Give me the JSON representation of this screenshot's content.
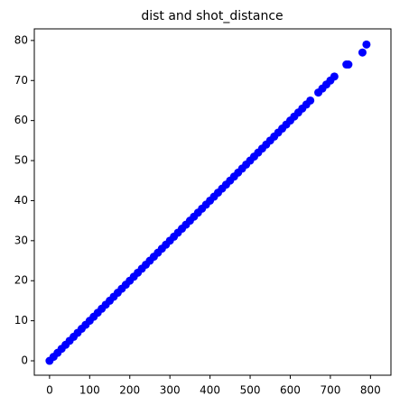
{
  "chart_data": {
    "type": "scatter",
    "title": "dist and shot_distance",
    "color": "#0000ff",
    "x": [
      0,
      10,
      20,
      30,
      40,
      50,
      60,
      70,
      80,
      90,
      100,
      110,
      120,
      130,
      140,
      150,
      160,
      170,
      180,
      190,
      200,
      210,
      220,
      230,
      240,
      250,
      260,
      270,
      280,
      290,
      300,
      310,
      320,
      330,
      340,
      350,
      360,
      370,
      380,
      390,
      400,
      410,
      420,
      430,
      440,
      450,
      460,
      470,
      480,
      490,
      500,
      510,
      520,
      530,
      540,
      550,
      560,
      570,
      580,
      590,
      600,
      610,
      620,
      630,
      640,
      650,
      670,
      680,
      690,
      700,
      710,
      740,
      745,
      780,
      790
    ],
    "values": [
      0,
      1,
      2,
      3,
      4,
      5,
      6,
      7,
      8,
      9,
      10,
      11,
      12,
      13,
      14,
      15,
      16,
      17,
      18,
      19,
      20,
      21,
      22,
      23,
      24,
      25,
      26,
      27,
      28,
      29,
      30,
      31,
      32,
      33,
      34,
      35,
      36,
      37,
      38,
      39,
      40,
      41,
      42,
      43,
      44,
      45,
      46,
      47,
      48,
      49,
      50,
      51,
      52,
      53,
      54,
      55,
      56,
      57,
      58,
      59,
      60,
      61,
      62,
      63,
      64,
      65,
      67,
      68,
      69,
      70,
      71,
      74,
      74,
      77,
      79
    ],
    "xlim": [
      -38,
      851
    ],
    "ylim": [
      -3.6,
      82.9
    ],
    "xticks": [
      0,
      100,
      200,
      300,
      400,
      500,
      600,
      700,
      800
    ],
    "yticks": [
      0,
      10,
      20,
      30,
      40,
      50,
      60,
      70,
      80
    ]
  }
}
